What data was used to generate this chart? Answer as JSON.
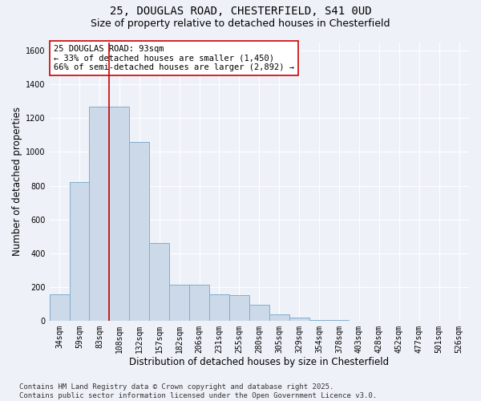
{
  "title_line1": "25, DOUGLAS ROAD, CHESTERFIELD, S41 0UD",
  "title_line2": "Size of property relative to detached houses in Chesterfield",
  "xlabel": "Distribution of detached houses by size in Chesterfield",
  "ylabel": "Number of detached properties",
  "categories": [
    "34sqm",
    "59sqm",
    "83sqm",
    "108sqm",
    "132sqm",
    "157sqm",
    "182sqm",
    "206sqm",
    "231sqm",
    "255sqm",
    "280sqm",
    "305sqm",
    "329sqm",
    "354sqm",
    "378sqm",
    "403sqm",
    "428sqm",
    "452sqm",
    "477sqm",
    "501sqm",
    "526sqm"
  ],
  "values": [
    160,
    820,
    1270,
    1270,
    1060,
    460,
    215,
    215,
    160,
    155,
    95,
    40,
    20,
    8,
    4,
    2,
    2,
    2,
    2,
    2,
    2
  ],
  "bar_color": "#ccd9e8",
  "bar_edge_color": "#7faed0",
  "vline_x": 2.5,
  "vline_color": "#cc0000",
  "annotation_text": "25 DOUGLAS ROAD: 93sqm\n← 33% of detached houses are smaller (1,450)\n66% of semi-detached houses are larger (2,892) →",
  "annotation_box_color": "white",
  "annotation_box_edgecolor": "#cc0000",
  "ylim": [
    0,
    1650
  ],
  "yticks": [
    0,
    200,
    400,
    600,
    800,
    1000,
    1200,
    1400,
    1600
  ],
  "footer_text": "Contains HM Land Registry data © Crown copyright and database right 2025.\nContains public sector information licensed under the Open Government Licence v3.0.",
  "background_color": "#eef2f8",
  "grid_color": "white",
  "title_fontsize": 10,
  "subtitle_fontsize": 9,
  "axis_label_fontsize": 8.5,
  "tick_fontsize": 7,
  "annotation_fontsize": 7.5,
  "footer_fontsize": 6.5
}
